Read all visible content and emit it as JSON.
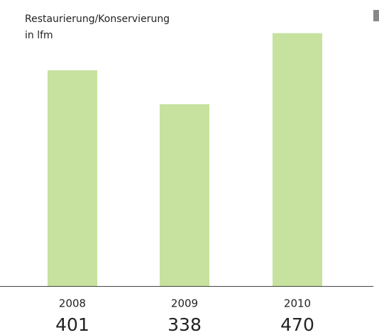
{
  "chart_data": {
    "type": "bar",
    "title": "Restaurierung/Konservierung",
    "subtitle": "in lfm",
    "categories": [
      "2008",
      "2009",
      "2010"
    ],
    "values": [
      401,
      338,
      470
    ],
    "color": "#c6e29e"
  }
}
